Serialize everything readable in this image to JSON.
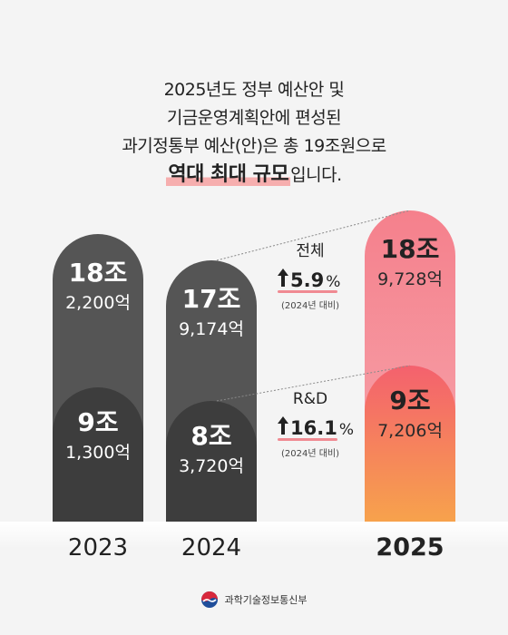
{
  "headline": {
    "line1": "2025년도 정부 예산안 및",
    "line2": "기금운영계획안에 편성된",
    "line3": "과기정통부 예산(안)은 총 19조원으로",
    "line4_emph": "역대 최대 규모",
    "line4_rest": "입니다."
  },
  "chart_data": {
    "type": "bar",
    "categories": [
      "2023",
      "2024",
      "2025"
    ],
    "series": [
      {
        "values_eok": [
          182200,
          179174,
          189728
        ],
        "labels_jo": [
          "18조",
          "17조",
          "18조"
        ],
        "labels_eok": [
          "2,200억",
          "9,174억",
          "9,728억"
        ]
      },
      {
        "name": "R&D",
        "values_eok": [
          91300,
          83720,
          97206
        ],
        "labels_jo": [
          "9조",
          "8조",
          "9조"
        ],
        "labels_eok": [
          "1,300억",
          "3,720억",
          "7,206억"
        ]
      }
    ],
    "annotations": [
      {
        "title": "전체",
        "change": "5.9",
        "unit": "%",
        "note": "(2024년 대비)"
      },
      {
        "title": "R&D",
        "change": "16.1",
        "unit": "%",
        "note": "(2024년 대비)"
      }
    ],
    "colors": {
      "outer_gray": "#555555",
      "inner_gray": "#3c3c3c",
      "highlight_top": "#f5707c",
      "highlight_bottom": "#f7a04a"
    }
  },
  "footer": {
    "ministry": "과학기술정보통신부"
  }
}
